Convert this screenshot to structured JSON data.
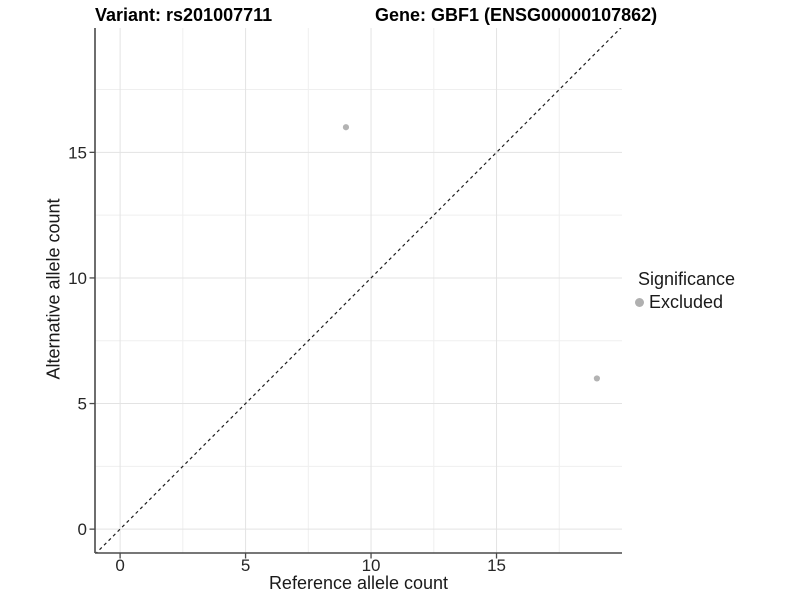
{
  "titles": {
    "variant": "Variant: rs201007711",
    "gene": "Gene: GBF1 (ENSG00000107862)"
  },
  "legend": {
    "title": "Significance",
    "items": [
      {
        "label": "Excluded",
        "color": "#b0b0b0"
      }
    ]
  },
  "chart_data": {
    "type": "scatter",
    "title": "Variant: rs201007711 | Gene: GBF1 (ENSG00000107862)",
    "xlabel": "Reference allele count",
    "ylabel": "Alternative allele count",
    "xlim": [
      -1,
      20
    ],
    "ylim": [
      -1,
      20
    ],
    "x_ticks": [
      0,
      5,
      10,
      15
    ],
    "y_ticks": [
      0,
      5,
      10,
      15
    ],
    "grid": "major+minor",
    "legend_position": "right",
    "series": [
      {
        "name": "Excluded",
        "color": "#b3b3b3",
        "points": [
          [
            9,
            16
          ],
          [
            19,
            6
          ]
        ]
      }
    ],
    "reference_line": {
      "kind": "identity",
      "style": "dashed",
      "from": -1,
      "to": 20,
      "color": "#1f1f1f"
    },
    "colors": {
      "grid_major": "#e3e3e3",
      "grid_minor": "#efefef",
      "axis_line": "#4a4a4a",
      "tick_label": "#262626"
    }
  }
}
